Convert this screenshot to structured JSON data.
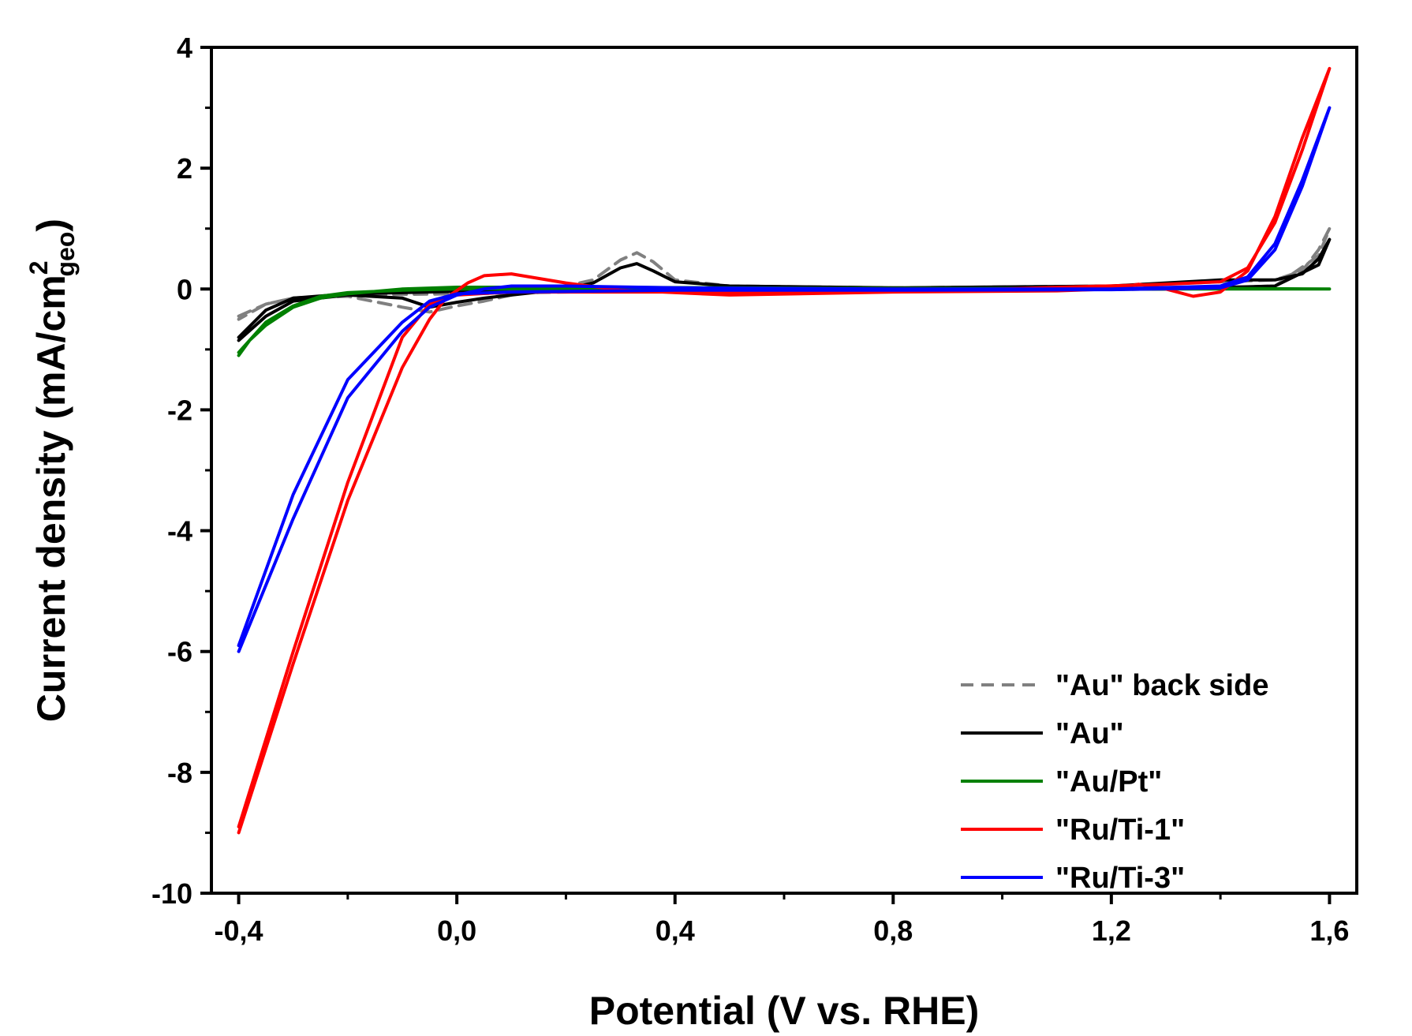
{
  "chart_data": {
    "type": "line",
    "xlabel": "Potential (V vs. RHE)",
    "ylabel_main": "Current density (mA/cm",
    "ylabel_sup": "2",
    "ylabel_sub": "geo",
    "ylabel_close": ")",
    "xlim": [
      -0.45,
      1.65
    ],
    "ylim": [
      -10,
      4
    ],
    "x_ticks": [
      -0.4,
      0.0,
      0.4,
      0.8,
      1.2,
      1.6
    ],
    "x_tick_labels": [
      "-0,4",
      "0,0",
      "0,4",
      "0,8",
      "1,2",
      "1,6"
    ],
    "y_ticks": [
      -10,
      -8,
      -6,
      -4,
      -2,
      0,
      2,
      4
    ],
    "y_tick_labels": [
      "-10",
      "-8",
      "-6",
      "-4",
      "-2",
      "0",
      "2",
      "4"
    ],
    "grid": false,
    "legend_position": "bottom-right",
    "series": [
      {
        "name": "\"Au\" back side",
        "color": "#808080",
        "dash": true,
        "x": [
          -0.4,
          -0.35,
          -0.3,
          -0.2,
          -0.1,
          -0.05,
          0.0,
          0.05,
          0.1,
          0.2,
          0.25,
          0.3,
          0.33,
          0.36,
          0.4,
          0.5,
          0.8,
          1.2,
          1.4,
          1.5,
          1.55,
          1.58,
          1.6,
          1.58,
          1.5,
          1.3,
          1.0,
          0.5,
          0.2,
          0.0,
          -0.2,
          -0.3,
          -0.35,
          -0.4
        ],
        "y": [
          -0.45,
          -0.25,
          -0.15,
          -0.12,
          -0.3,
          -0.38,
          -0.28,
          -0.2,
          -0.1,
          0.05,
          0.15,
          0.48,
          0.6,
          0.45,
          0.15,
          0.05,
          0.02,
          0.05,
          0.12,
          0.15,
          0.3,
          0.65,
          1.0,
          0.55,
          0.05,
          0.0,
          -0.02,
          -0.03,
          -0.05,
          -0.08,
          -0.1,
          -0.15,
          -0.25,
          -0.5
        ]
      },
      {
        "name": "\"Au\"",
        "color": "#000000",
        "dash": false,
        "x": [
          -0.4,
          -0.35,
          -0.3,
          -0.2,
          -0.1,
          -0.05,
          0.0,
          0.05,
          0.1,
          0.2,
          0.25,
          0.3,
          0.33,
          0.36,
          0.4,
          0.5,
          0.8,
          1.2,
          1.3,
          1.4,
          1.5,
          1.55,
          1.58,
          1.6,
          1.58,
          1.5,
          1.3,
          1.0,
          0.5,
          0.2,
          0.0,
          -0.1,
          -0.2,
          -0.3,
          -0.35,
          -0.4
        ],
        "y": [
          -0.85,
          -0.45,
          -0.2,
          -0.1,
          -0.15,
          -0.3,
          -0.22,
          -0.15,
          -0.1,
          0.0,
          0.1,
          0.35,
          0.42,
          0.3,
          0.12,
          0.05,
          0.02,
          0.05,
          0.1,
          0.15,
          0.15,
          0.25,
          0.5,
          0.82,
          0.4,
          0.05,
          0.0,
          -0.02,
          -0.03,
          -0.03,
          -0.04,
          -0.06,
          -0.08,
          -0.15,
          -0.35,
          -0.8
        ]
      },
      {
        "name": "\"Au/Pt\"",
        "color": "#008000",
        "dash": false,
        "x": [
          -0.4,
          -0.38,
          -0.35,
          -0.3,
          -0.25,
          -0.2,
          -0.1,
          0.0,
          0.2,
          0.5,
          0.8,
          1.2,
          1.4,
          1.6,
          1.2,
          0.8,
          0.4,
          0.0,
          -0.1,
          -0.2,
          -0.25,
          -0.3,
          -0.35,
          -0.4
        ],
        "y": [
          -1.1,
          -0.85,
          -0.6,
          -0.3,
          -0.15,
          -0.08,
          0.0,
          0.03,
          0.03,
          0.02,
          0.01,
          0.01,
          0.01,
          0.0,
          0.0,
          0.0,
          0.0,
          0.0,
          -0.02,
          -0.06,
          -0.12,
          -0.28,
          -0.55,
          -1.05
        ]
      },
      {
        "name": "\"Ru/Ti-1\"",
        "color": "#ff0000",
        "dash": false,
        "x": [
          -0.4,
          -0.3,
          -0.2,
          -0.1,
          -0.05,
          -0.02,
          0.02,
          0.05,
          0.1,
          0.2,
          0.3,
          0.5,
          0.8,
          1.1,
          1.2,
          1.25,
          1.3,
          1.35,
          1.4,
          1.45,
          1.5,
          1.55,
          1.6,
          1.55,
          1.5,
          1.45,
          1.4,
          1.3,
          1.0,
          0.5,
          0.1,
          0.0,
          -0.05,
          -0.1,
          -0.2,
          -0.3,
          -0.4
        ],
        "y": [
          -9.0,
          -6.2,
          -3.5,
          -1.3,
          -0.5,
          -0.15,
          0.1,
          0.22,
          0.25,
          0.1,
          -0.02,
          -0.1,
          -0.05,
          -0.03,
          0.0,
          0.08,
          0.0,
          -0.12,
          -0.05,
          0.3,
          1.2,
          2.5,
          3.65,
          2.3,
          1.1,
          0.35,
          0.12,
          0.08,
          0.0,
          -0.05,
          -0.05,
          -0.1,
          -0.25,
          -0.8,
          -3.2,
          -6.0,
          -8.9
        ]
      },
      {
        "name": "\"Ru/Ti-3\"",
        "color": "#0000ff",
        "dash": false,
        "x": [
          -0.4,
          -0.3,
          -0.2,
          -0.1,
          -0.05,
          0.0,
          0.05,
          0.1,
          0.2,
          0.4,
          0.8,
          1.2,
          1.4,
          1.45,
          1.5,
          1.55,
          1.6,
          1.55,
          1.5,
          1.45,
          1.4,
          1.2,
          0.8,
          0.4,
          0.1,
          0.0,
          -0.05,
          -0.1,
          -0.2,
          -0.3,
          -0.4
        ],
        "y": [
          -6.0,
          -3.8,
          -1.8,
          -0.7,
          -0.3,
          -0.1,
          0.0,
          0.05,
          0.05,
          0.02,
          0.0,
          0.0,
          0.05,
          0.2,
          0.75,
          1.8,
          3.0,
          1.7,
          0.65,
          0.15,
          0.02,
          -0.01,
          -0.02,
          -0.02,
          -0.05,
          -0.08,
          -0.2,
          -0.55,
          -1.5,
          -3.4,
          -5.9
        ]
      }
    ]
  }
}
